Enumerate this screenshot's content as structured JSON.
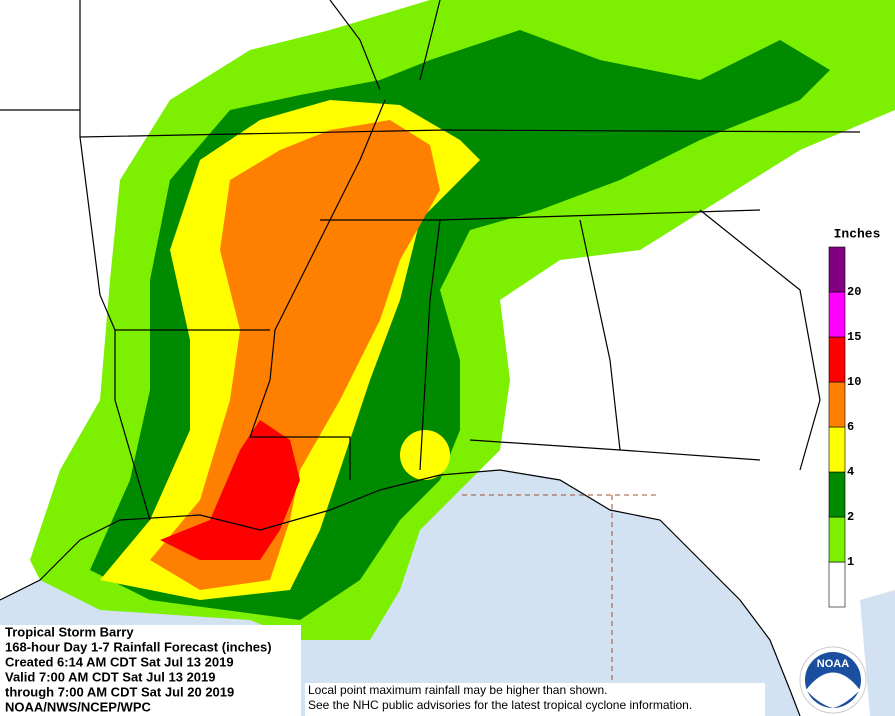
{
  "map": {
    "legend": {
      "title": "Inches",
      "colors": [
        "#ffffff",
        "#7cf000",
        "#008a00",
        "#ffff00",
        "#ff8000",
        "#ff0000",
        "#ff00ff",
        "#800080"
      ],
      "labels": [
        "1",
        "2",
        "4",
        "6",
        "10",
        "15",
        "20"
      ]
    },
    "info": {
      "lines": [
        "Tropical Storm Barry",
        "168-hour Day 1-7 Rainfall Forecast (inches)",
        "Created 6:14 AM CDT Sat Jul 13 2019",
        "Valid 7:00 AM CDT Sat Jul 13 2019",
        "through 7:00 AM CDT Sat Jul 20 2019",
        "NOAA/NWS/NCEP/WPC"
      ]
    },
    "notes": [
      "Local point maximum rainfall may be higher than shown.",
      "See the NHC public advisories for the latest tropical cyclone information."
    ],
    "logo": "NOAA"
  }
}
